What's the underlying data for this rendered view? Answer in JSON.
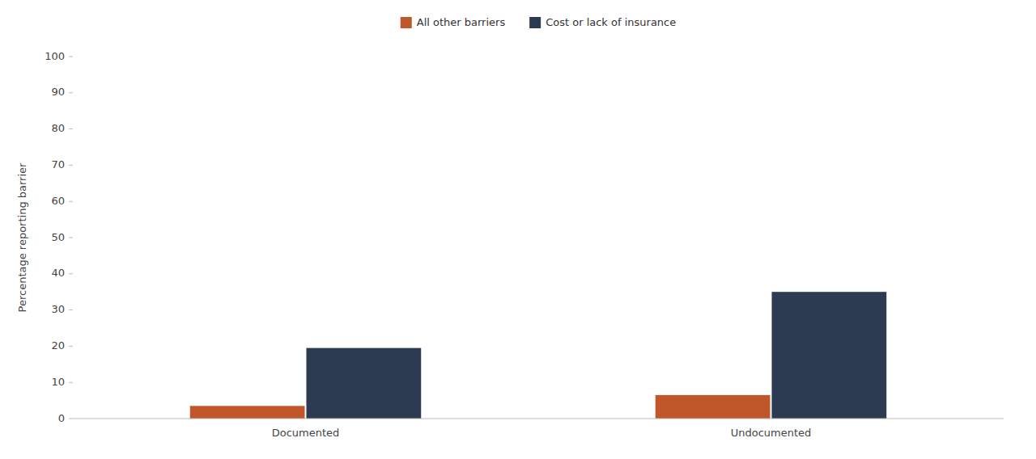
{
  "chart_data": {
    "type": "bar",
    "categories": [
      "Documented",
      "Undocumented"
    ],
    "series": [
      {
        "name": "All other barriers",
        "color": "#C0572A",
        "values": [
          3.5,
          6.5
        ]
      },
      {
        "name": "Cost or lack of insurance",
        "color": "#2C3A52",
        "values": [
          19.5,
          35.0
        ]
      }
    ],
    "ylabel": "Percentage reporting barrier",
    "ylim": [
      0,
      100
    ],
    "yticks": [
      0,
      10,
      20,
      30,
      40,
      50,
      60,
      70,
      80,
      90,
      100
    ],
    "grid": false,
    "legend": "top"
  }
}
